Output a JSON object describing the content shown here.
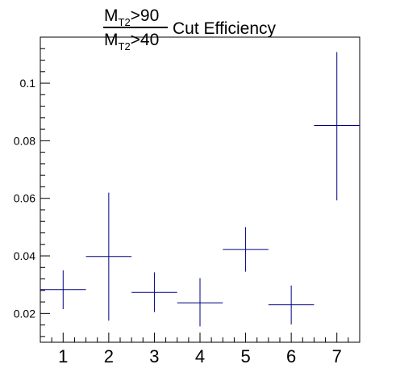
{
  "chart_data": {
    "type": "scatter",
    "title": {
      "numerator": "M",
      "numerator_sub": "T2",
      "numerator_rest": ">90",
      "denominator": "M",
      "denominator_sub": "T2",
      "denominator_rest": ">40",
      "suffix": "Cut Efficiency"
    },
    "xlabel": "",
    "ylabel": "",
    "xlim": [
      0.5,
      7.5
    ],
    "ylim": [
      0.01,
      0.116
    ],
    "x_ticks": [
      "1",
      "2",
      "3",
      "4",
      "5",
      "6",
      "7"
    ],
    "y_ticks": [
      "0.02",
      "0.04",
      "0.06",
      "0.08",
      "0.1"
    ],
    "y_tick_values": [
      0.02,
      0.04,
      0.06,
      0.08,
      0.1
    ],
    "line_color": "#000080",
    "points": [
      {
        "x": 1,
        "y": 0.0283,
        "x_err": 0.5,
        "y_low": 0.0215,
        "y_high": 0.035
      },
      {
        "x": 2,
        "y": 0.0398,
        "x_err": 0.5,
        "y_low": 0.0175,
        "y_high": 0.062
      },
      {
        "x": 3,
        "y": 0.0273,
        "x_err": 0.5,
        "y_low": 0.0205,
        "y_high": 0.0343
      },
      {
        "x": 4,
        "y": 0.0237,
        "x_err": 0.5,
        "y_low": 0.0155,
        "y_high": 0.0323
      },
      {
        "x": 5,
        "y": 0.0422,
        "x_err": 0.5,
        "y_low": 0.0345,
        "y_high": 0.05
      },
      {
        "x": 6,
        "y": 0.023,
        "x_err": 0.5,
        "y_low": 0.0162,
        "y_high": 0.0297
      },
      {
        "x": 7,
        "y": 0.0853,
        "x_err": 0.5,
        "y_low": 0.0593,
        "y_high": 0.1108
      }
    ]
  }
}
